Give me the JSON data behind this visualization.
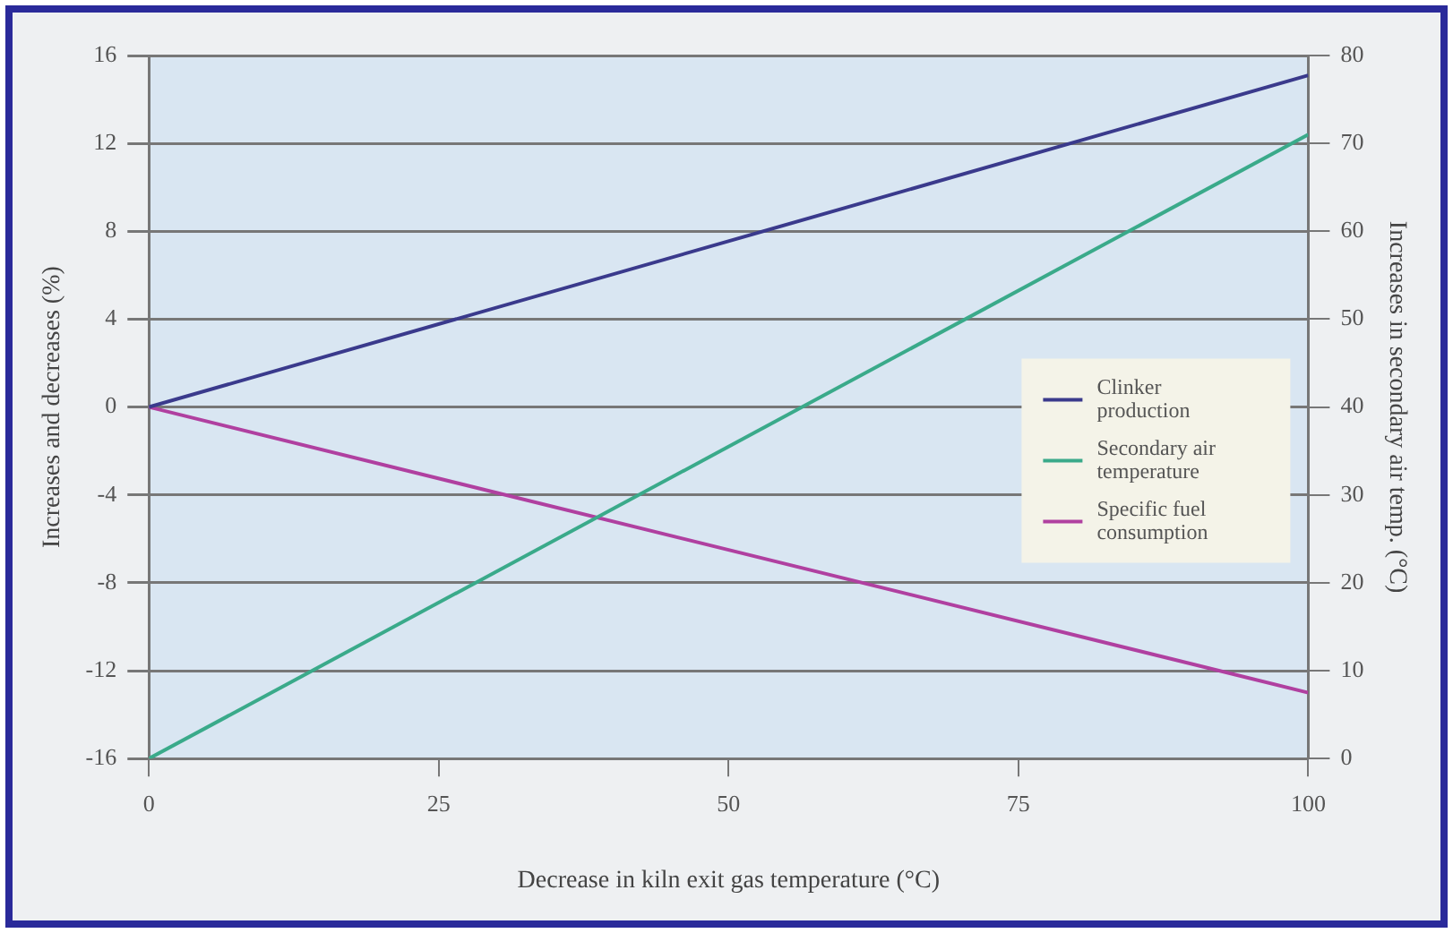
{
  "chart_data": {
    "type": "line",
    "xlabel": "Decrease in kiln exit gas temperature (°C)",
    "ylabel": "Increases and decreases (%)",
    "y2label": "Increases in secondary air temp. (°C)",
    "x": [
      0,
      100
    ],
    "series": [
      {
        "name": "Clinker production",
        "color": "#3a3a8c",
        "values": [
          0,
          15.1
        ]
      },
      {
        "name": "Secondary air temperature",
        "color": "#3aaa8a",
        "values": [
          0,
          71
        ],
        "axis": "y2"
      },
      {
        "name": "Specific fuel consumption",
        "color": "#b040a0",
        "values": [
          0,
          -13
        ]
      }
    ],
    "xlim": [
      0,
      100
    ],
    "xticks": [
      0,
      25,
      50,
      75,
      100
    ],
    "ylim": [
      -16,
      16
    ],
    "yticks": [
      -16,
      -12,
      -8,
      -4,
      0,
      4,
      8,
      12,
      16
    ],
    "y2lim": [
      0,
      80
    ],
    "y2ticks": [
      0,
      10,
      20,
      30,
      40,
      50,
      60,
      70,
      80
    ],
    "grid": "y",
    "legend": "right",
    "marker": "none",
    "line_style": "solid"
  }
}
